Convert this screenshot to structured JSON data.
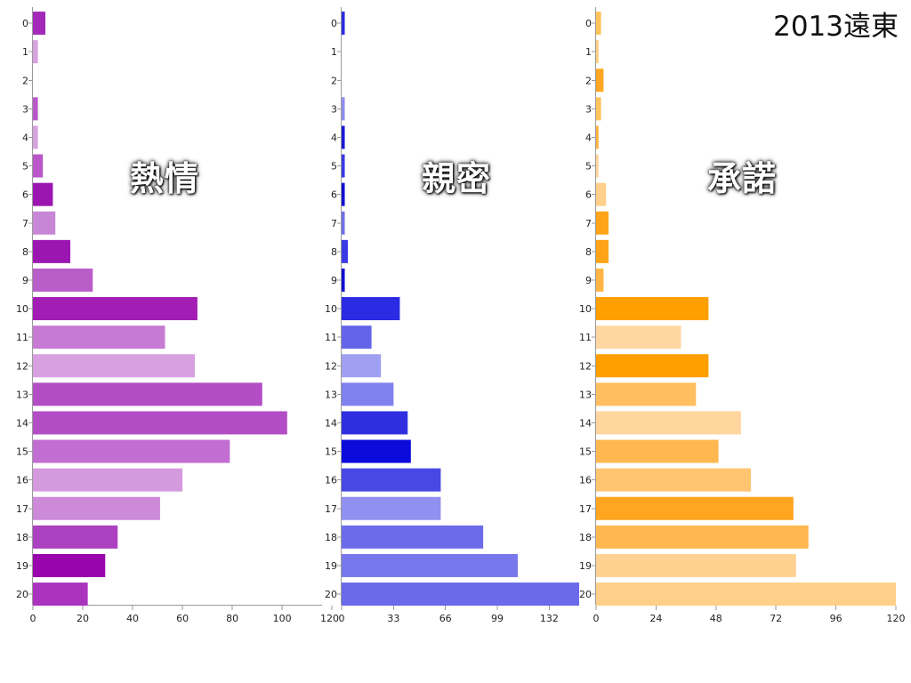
{
  "page_title": "2013遠東",
  "chart_data": [
    {
      "type": "bar",
      "orientation": "horizontal",
      "title": "熱情",
      "categories": [
        "0",
        "1",
        "2",
        "3",
        "4",
        "5",
        "6",
        "7",
        "8",
        "9",
        "10",
        "11",
        "12",
        "13",
        "14",
        "15",
        "16",
        "17",
        "18",
        "19",
        "20"
      ],
      "values": [
        5,
        2,
        0,
        2,
        2,
        4,
        8,
        9,
        15,
        24,
        66,
        53,
        65,
        92,
        102,
        79,
        60,
        51,
        34,
        29,
        22
      ],
      "colors": [
        "#a32ab8",
        "#d8a2e0",
        "#d8a2e0",
        "#b957c9",
        "#d8a2e0",
        "#b957c9",
        "#9b16b0",
        "#c886d6",
        "#9b16b0",
        "#b95dc8",
        "#a11db4",
        "#c77ad4",
        "#d8a0e0",
        "#b24dc5",
        "#b24dc5",
        "#c26dd2",
        "#d49ade",
        "#cc8ad8",
        "#ab40c0",
        "#9805ad",
        "#ab34bf"
      ],
      "xticks": [
        0,
        20,
        40,
        60,
        80,
        100,
        120
      ],
      "xlim": [
        0,
        116
      ]
    },
    {
      "type": "bar",
      "orientation": "horizontal",
      "title": "親密",
      "categories": [
        "0",
        "1",
        "2",
        "3",
        "4",
        "5",
        "6",
        "7",
        "8",
        "9",
        "10",
        "11",
        "12",
        "13",
        "14",
        "15",
        "16",
        "17",
        "18",
        "19",
        "20"
      ],
      "values": [
        2,
        0,
        0,
        2,
        2,
        2,
        2,
        2,
        4,
        2,
        37,
        19,
        25,
        33,
        42,
        44,
        63,
        63,
        90,
        112,
        151
      ],
      "colors": [
        "#2b2be0",
        "#8f8ff0",
        "#8f8ff0",
        "#8f8ff0",
        "#1a1ad6",
        "#3a3ae4",
        "#1010d0",
        "#7070ea",
        "#3a3ae4",
        "#1010d0",
        "#2b2be3",
        "#6464ea",
        "#a0a0f2",
        "#8080ee",
        "#2f2fe0",
        "#0b0bdc",
        "#4848e4",
        "#9090f0",
        "#6c6cea",
        "#7878ec",
        "#6a6aea"
      ],
      "xticks": [
        0,
        33,
        66,
        99,
        132
      ],
      "xlim": [
        0,
        151
      ]
    },
    {
      "type": "bar",
      "orientation": "horizontal",
      "title": "承諾",
      "categories": [
        "0",
        "1",
        "2",
        "3",
        "4",
        "5",
        "6",
        "7",
        "8",
        "9",
        "10",
        "11",
        "12",
        "13",
        "14",
        "15",
        "16",
        "17",
        "18",
        "19",
        "20"
      ],
      "values": [
        2,
        1,
        3,
        2,
        1,
        1,
        4,
        5,
        5,
        3,
        45,
        34,
        45,
        40,
        58,
        49,
        62,
        79,
        85,
        80,
        120
      ],
      "colors": [
        "#ffc35c",
        "#ffcf80",
        "#ffa722",
        "#ffc35c",
        "#ffb23e",
        "#ffd69a",
        "#ffd08a",
        "#ffa418",
        "#ffa418",
        "#ffb545",
        "#ff9f00",
        "#ffd6a0",
        "#ff9f00",
        "#ffbf60",
        "#ffd69e",
        "#ffb850",
        "#ffc470",
        "#ffa520",
        "#ffb850",
        "#ffd190",
        "#ffd08a"
      ],
      "xticks": [
        0,
        24,
        48,
        72,
        96,
        120
      ],
      "xlim": [
        0,
        120
      ]
    }
  ]
}
